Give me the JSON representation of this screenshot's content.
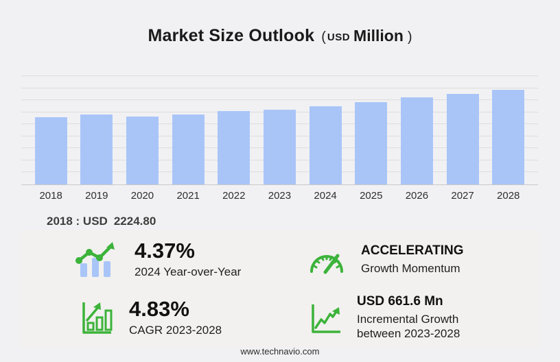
{
  "title": {
    "main": "Market Size Outlook",
    "paren_open": "(",
    "unit_small": "USD",
    "unit_big": "Million",
    "paren_close": ")"
  },
  "chart_data": {
    "type": "bar",
    "title": "Market Size Outlook (USD Million)",
    "categories": [
      "2018",
      "2019",
      "2020",
      "2021",
      "2022",
      "2023",
      "2024",
      "2025",
      "2026",
      "2027",
      "2028"
    ],
    "values": [
      2224.8,
      2318,
      2250,
      2318,
      2432,
      2487.2,
      2596,
      2727,
      2886,
      3000,
      3148.8
    ],
    "xlabel": "",
    "ylabel": "USD Million",
    "ylim": [
      0,
      3600
    ],
    "gridline_step": 400,
    "grid": true,
    "legend": false,
    "bar_color": "#a9c5f8",
    "known_points": {
      "2018_label": "2018 : USD 2224.80",
      "yoy_2024_pct": 4.37,
      "cagr_2023_2028_pct": 4.83,
      "incremental_growth_2023_2028_usd_mn": 661.6
    }
  },
  "annotation": {
    "label": "2018 : USD",
    "value": "2224.80"
  },
  "stats": [
    {
      "icon": "bar-trend-icon",
      "value": "4.37%",
      "label": "2024 Year-over-Year"
    },
    {
      "icon": "gauge-icon",
      "value": "ACCELERATING",
      "label": "Growth Momentum"
    },
    {
      "icon": "growth-bars-icon",
      "value": "4.83%",
      "label": "CAGR 2023-2028"
    },
    {
      "icon": "line-growth-icon",
      "value": "USD 661.6 Mn",
      "label": "Incremental Growth between 2023-2028"
    }
  ],
  "footer": {
    "url": "www.technavio.com"
  },
  "colors": {
    "bar": "#a9c5f8",
    "accent_green": "#3cb33a",
    "background": "#f1f1f3",
    "panel": "#f2f1ef",
    "gridline": "#dddddd"
  }
}
